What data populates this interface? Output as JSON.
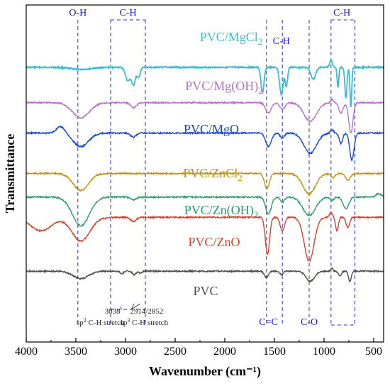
{
  "chart_data": {
    "type": "line",
    "title": "",
    "xlabel": "Wavenumber (cm⁻¹)",
    "ylabel": "Transmittance",
    "xlim": [
      4000,
      400
    ],
    "xticks": [
      4000,
      3500,
      3000,
      2500,
      2000,
      1500,
      1000,
      500
    ],
    "xtick_labels": [
      "4000",
      "3500",
      "3000",
      "2500",
      "2000",
      "1500",
      "1000",
      "500"
    ],
    "y_ticks_shown": false,
    "grid": false,
    "series": [
      {
        "name": "PVC/MgCl2",
        "color": "#3bbcd2",
        "baseline": 0.185,
        "features": [
          {
            "x": 3450,
            "d": 0.006,
            "w": 150
          },
          {
            "x": 2975,
            "d": 0.04,
            "w": 35
          },
          {
            "x": 2920,
            "d": 0.05,
            "w": 25
          },
          {
            "x": 2870,
            "d": 0.03,
            "w": 25
          },
          {
            "x": 1620,
            "d": 0.075,
            "w": 22
          },
          {
            "x": 1430,
            "d": 0.08,
            "w": 25
          },
          {
            "x": 1380,
            "d": 0.055,
            "w": 18
          },
          {
            "x": 1110,
            "d": 0.035,
            "w": 35
          },
          {
            "x": 860,
            "d": 0.06,
            "w": 12
          },
          {
            "x": 780,
            "d": 0.09,
            "w": 15
          },
          {
            "x": 730,
            "d": 0.12,
            "w": 12
          },
          {
            "x": 930,
            "d": -0.02,
            "w": 20
          }
        ]
      },
      {
        "name": "PVC/Mg(OH)2",
        "color": "#b473c6",
        "baseline": 0.29,
        "features": [
          {
            "x": 3450,
            "d": 0.045,
            "w": 120
          },
          {
            "x": 2920,
            "d": 0.015,
            "w": 40
          },
          {
            "x": 1560,
            "d": 0.03,
            "w": 40
          },
          {
            "x": 1420,
            "d": 0.02,
            "w": 35
          },
          {
            "x": 1140,
            "d": 0.055,
            "w": 90
          },
          {
            "x": 920,
            "d": -0.01,
            "w": 20
          },
          {
            "x": 830,
            "d": 0.03,
            "w": 30
          },
          {
            "x": 730,
            "d": 0.09,
            "w": 30
          }
        ]
      },
      {
        "name": "PVC/MgO",
        "color": "#1a46d4",
        "baseline": 0.38,
        "features": [
          {
            "x": 3650,
            "d": -0.02,
            "w": 60
          },
          {
            "x": 3450,
            "d": 0.04,
            "w": 110
          },
          {
            "x": 2920,
            "d": 0.012,
            "w": 40
          },
          {
            "x": 1560,
            "d": 0.04,
            "w": 40
          },
          {
            "x": 1420,
            "d": 0.015,
            "w": 30
          },
          {
            "x": 1140,
            "d": 0.06,
            "w": 90
          },
          {
            "x": 920,
            "d": -0.01,
            "w": 20
          },
          {
            "x": 830,
            "d": 0.03,
            "w": 25
          },
          {
            "x": 720,
            "d": 0.08,
            "w": 30
          }
        ]
      },
      {
        "name": "PVC/ZnCl2",
        "color": "#c2940e",
        "baseline": 0.5,
        "features": [
          {
            "x": 3450,
            "d": 0.05,
            "w": 110
          },
          {
            "x": 1575,
            "d": 0.045,
            "w": 35
          },
          {
            "x": 1150,
            "d": 0.06,
            "w": 90
          },
          {
            "x": 910,
            "d": 0.012,
            "w": 30
          },
          {
            "x": 760,
            "d": 0.02,
            "w": 35
          }
        ]
      },
      {
        "name": "PVC/Zn(OH)2",
        "color": "#2c9a6a",
        "baseline": 0.57,
        "features": [
          {
            "x": 3450,
            "d": 0.085,
            "w": 120
          },
          {
            "x": 2920,
            "d": 0.008,
            "w": 40
          },
          {
            "x": 1560,
            "d": 0.05,
            "w": 40
          },
          {
            "x": 1420,
            "d": 0.015,
            "w": 30
          },
          {
            "x": 1150,
            "d": 0.055,
            "w": 90
          },
          {
            "x": 920,
            "d": 0.01,
            "w": 25
          },
          {
            "x": 780,
            "d": 0.035,
            "w": 40
          },
          {
            "x": 450,
            "d": -0.01,
            "w": 40
          }
        ]
      },
      {
        "name": "PVC/ZnO",
        "color": "#d0442c",
        "baseline": 0.63,
        "features": [
          {
            "x": 3850,
            "d": 0.04,
            "w": 150
          },
          {
            "x": 3450,
            "d": 0.07,
            "w": 130
          },
          {
            "x": 2920,
            "d": 0.012,
            "w": 40
          },
          {
            "x": 1570,
            "d": 0.11,
            "w": 30
          },
          {
            "x": 1420,
            "d": 0.04,
            "w": 30
          },
          {
            "x": 1150,
            "d": 0.13,
            "w": 70
          },
          {
            "x": 930,
            "d": -0.015,
            "w": 20
          },
          {
            "x": 870,
            "d": 0.04,
            "w": 20
          },
          {
            "x": 760,
            "d": 0.03,
            "w": 25
          }
        ]
      },
      {
        "name": "PVC",
        "color": "#4d4d4d",
        "baseline": 0.79,
        "features": [
          {
            "x": 3450,
            "d": 0.022,
            "w": 110
          },
          {
            "x": 3038,
            "d": 0.008,
            "w": 20
          },
          {
            "x": 2914,
            "d": 0.01,
            "w": 25
          },
          {
            "x": 2852,
            "d": 0.006,
            "w": 20
          },
          {
            "x": 1580,
            "d": 0.018,
            "w": 30
          },
          {
            "x": 1430,
            "d": 0.01,
            "w": 25
          },
          {
            "x": 1140,
            "d": 0.03,
            "w": 60
          },
          {
            "x": 920,
            "d": -0.01,
            "w": 15
          },
          {
            "x": 840,
            "d": 0.015,
            "w": 20
          },
          {
            "x": 740,
            "d": 0.03,
            "w": 20
          }
        ]
      }
    ],
    "series_labels": [
      {
        "text": "PVC/MgCl",
        "sub": "2",
        "color": "#3bbcd2"
      },
      {
        "text": "PVC/Mg(OH)",
        "sub": "2",
        "color": "#b473c6"
      },
      {
        "text": "PVC/MgO",
        "sub": "",
        "color": "#1a46d4"
      },
      {
        "text": "PVC/ZnCl",
        "sub": "2",
        "color": "#c2940e"
      },
      {
        "text": "PVC/Zn(OH)",
        "sub": "2",
        "color": "#2c9a6a"
      },
      {
        "text": "PVC/ZnO",
        "sub": "",
        "color": "#d0442c"
      },
      {
        "text": "PVC",
        "sub": "",
        "color": "#4d4d4d"
      }
    ],
    "band_lines": [
      3480,
      3150,
      2800,
      1580,
      1420,
      1150,
      930,
      690
    ],
    "band_boxes": [
      [
        3150,
        2800
      ],
      [
        930,
        690
      ]
    ],
    "band_labels": [
      {
        "text": "O-H",
        "x": 3480
      },
      {
        "text": "C-H",
        "x": 2975
      },
      {
        "text": "C-H",
        "x": 1430
      },
      {
        "text": "C-H",
        "x": 820
      },
      {
        "text": "C=C",
        "x": 1560
      },
      {
        "text": "C-O",
        "x": 1150
      }
    ],
    "annotations": [
      {
        "text": "3038",
        "x": 3038
      },
      {
        "text": "2914/2852",
        "x": 2883
      },
      {
        "text": "sp",
        "sup": "2",
        "rest": " C-H stretch"
      },
      {
        "text": "sp",
        "sup": "3",
        "rest": " C-H stretch"
      }
    ]
  }
}
